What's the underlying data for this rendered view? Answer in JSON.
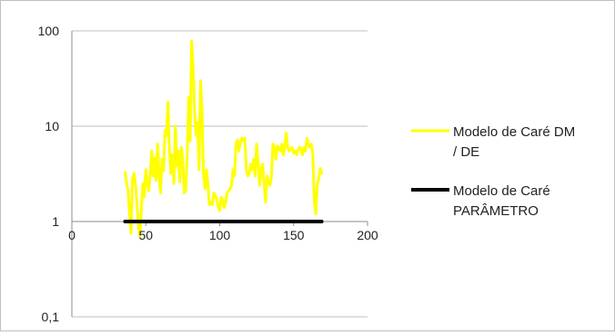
{
  "chart_data": {
    "type": "line",
    "title": "",
    "xlabel": "",
    "ylabel": "",
    "y_scale": "log",
    "xlim": [
      0,
      200
    ],
    "ylim": [
      0.1,
      100
    ],
    "x_ticks": [
      "0",
      "50",
      "100",
      "150",
      "200"
    ],
    "x_tick_values": [
      0,
      50,
      100,
      150,
      200
    ],
    "y_ticks": [
      "0,1",
      "1",
      "10",
      "100"
    ],
    "y_tick_values": [
      0.1,
      1,
      10,
      100
    ],
    "gridlines": "horizontal",
    "legend_position": "right",
    "series": [
      {
        "name": "Modelo de Caré DM / DE",
        "color": "#ffff00",
        "x": [
          36,
          37,
          38,
          39,
          40,
          41,
          42,
          43,
          44,
          45,
          46,
          47,
          48,
          49,
          50,
          51,
          52,
          53,
          54,
          55,
          56,
          57,
          58,
          59,
          60,
          61,
          62,
          63,
          64,
          65,
          66,
          67,
          68,
          69,
          70,
          71,
          72,
          73,
          74,
          75,
          76,
          77,
          78,
          79,
          80,
          81,
          82,
          83,
          84,
          85,
          86,
          87,
          88,
          89,
          90,
          91,
          92,
          93,
          94,
          95,
          96,
          97,
          98,
          99,
          100,
          101,
          102,
          103,
          104,
          105,
          106,
          107,
          108,
          109,
          110,
          111,
          112,
          113,
          114,
          115,
          116,
          117,
          118,
          119,
          120,
          121,
          122,
          123,
          124,
          125,
          126,
          127,
          128,
          129,
          130,
          131,
          132,
          133,
          134,
          135,
          136,
          137,
          138,
          139,
          140,
          141,
          142,
          143,
          144,
          145,
          146,
          147,
          148,
          149,
          150,
          151,
          152,
          153,
          154,
          155,
          156,
          157,
          158,
          159,
          160,
          161,
          162,
          163,
          164,
          165,
          166,
          167,
          168,
          169
        ],
        "y": [
          3.3,
          2.6,
          2.1,
          1.2,
          0.75,
          2.8,
          3.2,
          2.5,
          1.6,
          0.9,
          0.7,
          1.3,
          2.5,
          1.8,
          3.5,
          2.6,
          2.1,
          3.2,
          5.5,
          3.0,
          4.6,
          2.7,
          6.5,
          3.0,
          2.0,
          4.5,
          3.4,
          9.0,
          8.0,
          18.0,
          5.5,
          3.2,
          5.0,
          2.5,
          10.0,
          3.8,
          5.5,
          2.6,
          6.0,
          4.3,
          2.0,
          2.1,
          5.0,
          20.0,
          7.0,
          78.0,
          40.0,
          14.0,
          8.0,
          11.0,
          3.5,
          30.0,
          16.0,
          3.2,
          2.2,
          3.5,
          2.5,
          1.5,
          1.6,
          1.5,
          2.0,
          1.9,
          1.7,
          1.4,
          1.3,
          1.8,
          1.7,
          1.4,
          1.6,
          2.0,
          2.1,
          2.2,
          2.4,
          3.5,
          3.0,
          6.5,
          7.2,
          5.5,
          6.8,
          7.5,
          7.0,
          7.5,
          3.5,
          3.0,
          3.2,
          4.0,
          3.5,
          4.5,
          3.0,
          6.5,
          4.0,
          2.4,
          3.5,
          4.0,
          2.6,
          1.6,
          3.0,
          2.6,
          2.4,
          3.0,
          6.5,
          6.0,
          4.5,
          6.2,
          6.0,
          5.5,
          6.5,
          5.0,
          6.0,
          8.5,
          6.0,
          5.5,
          5.8,
          6.0,
          5.2,
          5.5,
          5.0,
          5.6,
          6.0,
          5.8,
          5.0,
          6.0,
          5.5,
          7.5,
          6.5,
          6.0,
          6.5,
          5.0,
          1.6,
          1.2,
          2.5,
          2.8,
          3.6,
          3.2
        ]
      },
      {
        "name": "Modelo de Caré PARÂMETRO",
        "color": "#000000",
        "x": [
          36,
          169
        ],
        "y": [
          1,
          1
        ]
      }
    ],
    "legend": {
      "entries": [
        {
          "line1": "Modelo de Caré DM",
          "line2": "/ DE",
          "color": "#ffff00"
        },
        {
          "line1": "Modelo de Caré",
          "line2": "PARÂMETRO",
          "color": "#000000"
        }
      ]
    }
  }
}
